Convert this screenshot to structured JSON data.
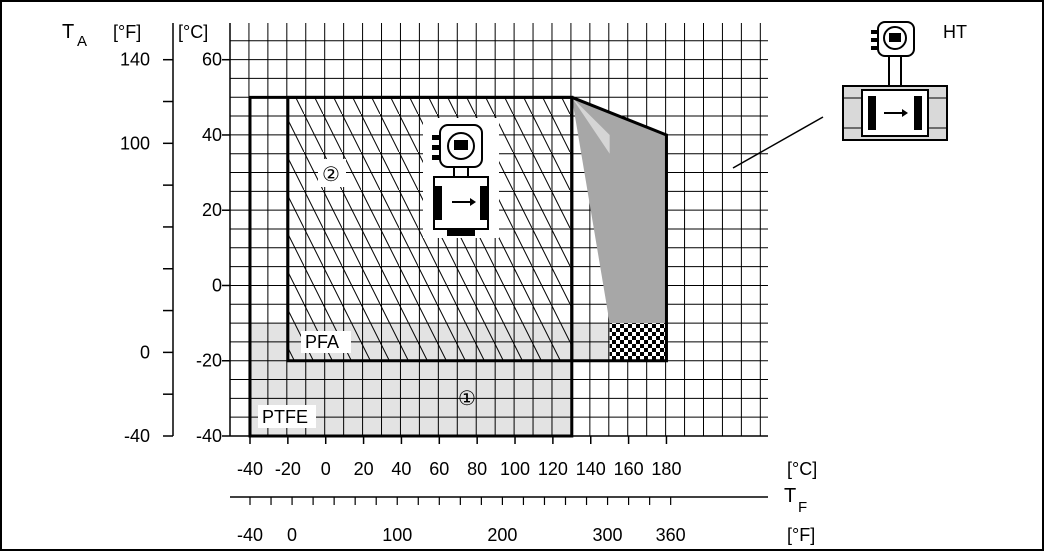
{
  "chart_data": {
    "type": "area",
    "y_axis": {
      "label_main": "T",
      "label_sub": "A",
      "unit_f": "[°F]",
      "unit_c": "[°C]",
      "ticks_c": [
        "60",
        "40",
        "20",
        "0",
        "-20",
        "-40"
      ],
      "ticks_f": [
        "140",
        "100",
        "0",
        "-40"
      ]
    },
    "x_axis": {
      "label_main": "T",
      "label_sub": "F",
      "unit_c": "[°C]",
      "unit_f": "[°F]",
      "ticks_c": [
        "-40",
        "-20",
        "0",
        "20",
        "40",
        "60",
        "80",
        "100",
        "120",
        "140",
        "160",
        "180"
      ],
      "ticks_f": [
        "-40",
        "0",
        "100",
        "200",
        "300",
        "360"
      ]
    },
    "regions": [
      {
        "name": "PTFE",
        "marker": "①",
        "polygon": [
          [
            -40,
            -40
          ],
          [
            130,
            -40
          ],
          [
            130,
            50
          ],
          [
            -40,
            50
          ]
        ]
      },
      {
        "name": "PFA",
        "marker": "②",
        "polygon": [
          [
            -20,
            -20
          ],
          [
            130,
            -20
          ],
          [
            130,
            50
          ],
          [
            -20,
            50
          ]
        ]
      },
      {
        "name": "HT",
        "polygon": [
          [
            150,
            -10
          ],
          [
            180,
            -10
          ],
          [
            180,
            40
          ],
          [
            130,
            50
          ]
        ]
      },
      {
        "name": "process-band",
        "polygon": [
          [
            -40,
            -10
          ],
          [
            180,
            -10
          ],
          [
            180,
            -20
          ],
          [
            130,
            -20
          ],
          [
            130,
            -40
          ],
          [
            -40,
            -40
          ]
        ]
      }
    ],
    "labels": {
      "ptfe": "PTFE",
      "pfa": "PFA",
      "ht": "HT",
      "marker_1": "①",
      "marker_2": "②"
    },
    "grid": true,
    "colors": {
      "grid": "#000000",
      "band": "#e3e3e3",
      "ht_fill": "#a7a7a7",
      "ht_light": "#d5d5d5",
      "outline": "#000000"
    }
  }
}
